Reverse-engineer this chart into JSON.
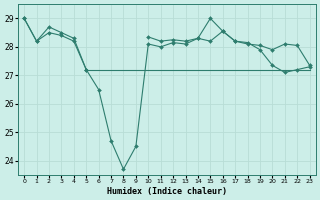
{
  "xlabel": "Humidex (Indice chaleur)",
  "background_color": "#cceee8",
  "grid_color": "#b8ddd6",
  "line_color": "#2e7d6e",
  "xlim": [
    -0.5,
    23.5
  ],
  "ylim": [
    23.5,
    29.5
  ],
  "yticks": [
    24,
    25,
    26,
    27,
    28,
    29
  ],
  "xticks": [
    0,
    1,
    2,
    3,
    4,
    5,
    6,
    7,
    8,
    9,
    10,
    11,
    12,
    13,
    14,
    15,
    16,
    17,
    18,
    19,
    20,
    21,
    22,
    23
  ],
  "line1": [
    29.0,
    28.2,
    28.7,
    28.5,
    28.3,
    27.2,
    null,
    null,
    null,
    null,
    28.35,
    28.2,
    28.25,
    28.2,
    28.3,
    28.2,
    28.55,
    28.2,
    28.1,
    28.05,
    27.9,
    28.1,
    28.05,
    27.35
  ],
  "line2": [
    29.0,
    28.2,
    28.5,
    28.4,
    28.2,
    27.2,
    26.5,
    24.7,
    23.7,
    24.5,
    28.1,
    28.0,
    28.15,
    28.1,
    28.3,
    29.0,
    28.55,
    28.2,
    28.15,
    27.9,
    27.35,
    27.1,
    27.2,
    27.3
  ],
  "line3": [
    null,
    null,
    null,
    null,
    null,
    27.2,
    27.2,
    27.2,
    27.2,
    27.2,
    27.2,
    27.2,
    27.2,
    27.2,
    27.2,
    27.2,
    27.2,
    27.2,
    27.2,
    27.2,
    27.2,
    27.2,
    27.2,
    27.2
  ]
}
